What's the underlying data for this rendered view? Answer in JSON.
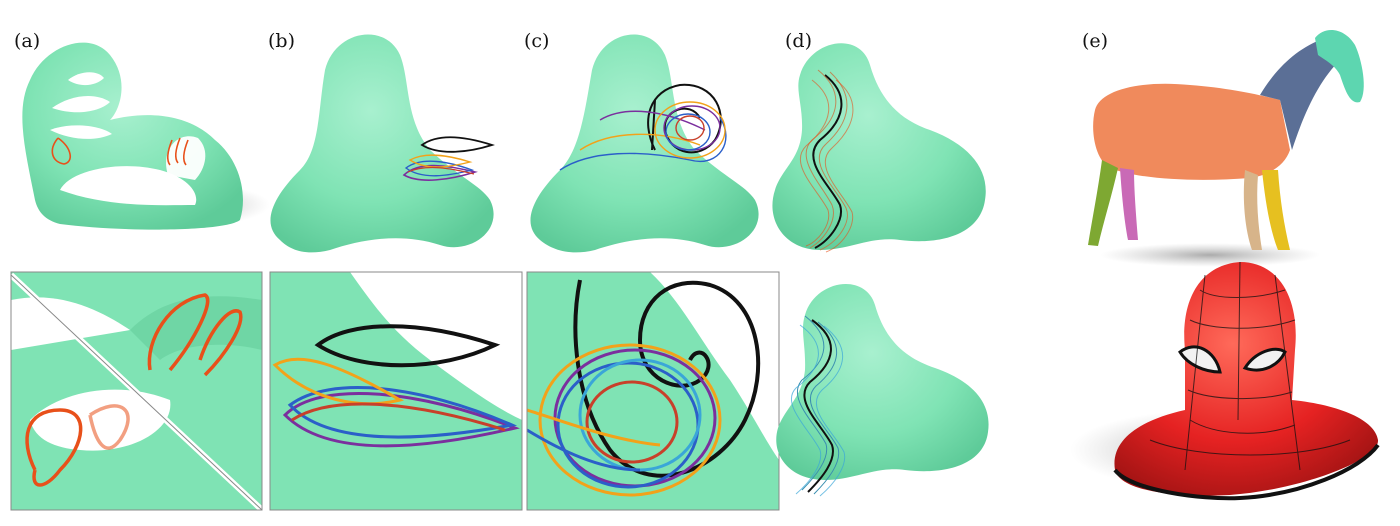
{
  "panels": [
    {
      "label": "(a)"
    },
    {
      "label": "(b)"
    },
    {
      "label": "(c)"
    },
    {
      "label": "(d)"
    },
    {
      "label": "(e)"
    }
  ],
  "colors": {
    "surface": "#7fe3b4",
    "surface_shade": "#5fcf9a",
    "curve_orange": "#e8501a",
    "curve_black": "#111111",
    "curve_purple": "#7b2f9e",
    "curve_blue": "#2b5fc9",
    "curve_yellow": "#f2a21a",
    "curve_red": "#c8402a",
    "curve_cyan": "#3aa6d8",
    "curve_copper": "#c8733f",
    "curve_teal": "#3a8fb0",
    "spiderman_red": "#e52222",
    "horse_body": "#f08a5c",
    "horse_neck": "#5b6f96",
    "horse_head": "#5dd6b0"
  }
}
